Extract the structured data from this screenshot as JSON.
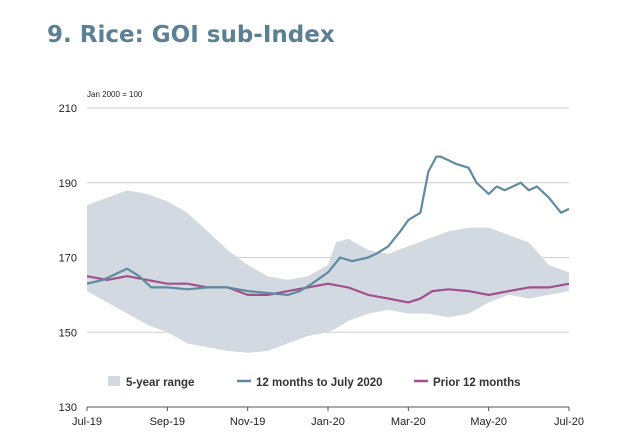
{
  "title": "9. Rice: GOI sub-Index",
  "chart_data": {
    "type": "line",
    "unit_note": "Jan 2000 = 100",
    "xlabel": "",
    "ylabel": "",
    "ylim": [
      130,
      210
    ],
    "yticks": [
      130,
      150,
      170,
      190,
      210
    ],
    "xlim": [
      0,
      12
    ],
    "xticks": [
      {
        "x": 0,
        "label": "Jul-19"
      },
      {
        "x": 2,
        "label": "Sep-19"
      },
      {
        "x": 4,
        "label": "Nov-19"
      },
      {
        "x": 6,
        "label": "Jan-20"
      },
      {
        "x": 8,
        "label": "Mar-20"
      },
      {
        "x": 10,
        "label": "May-20"
      },
      {
        "x": 12,
        "label": "Jul-20"
      }
    ],
    "grid": true,
    "legend_position": "bottom",
    "band": {
      "name": "5-year range",
      "color": "#d3d9e1",
      "x": [
        0,
        0.5,
        1,
        1.5,
        2,
        2.5,
        3,
        3.5,
        4,
        4.5,
        5,
        5.5,
        6,
        6.2,
        6.5,
        7,
        7.5,
        8,
        8.5,
        9,
        9.5,
        10,
        10.5,
        11,
        11.5,
        12
      ],
      "upper": [
        184,
        186,
        188,
        187,
        185,
        182,
        177,
        172,
        168,
        165,
        164,
        165,
        168,
        174,
        175,
        172,
        171,
        173,
        175,
        177,
        178,
        178,
        176,
        174,
        168,
        166
      ],
      "lower": [
        161,
        158,
        155,
        152,
        150,
        147,
        146,
        145,
        144.5,
        145,
        147,
        149,
        150,
        151,
        153,
        155,
        156,
        155,
        155,
        154,
        155,
        158,
        160,
        159,
        160,
        161
      ]
    },
    "series": [
      {
        "name": "12 months to July 2020",
        "color": "#5f8ba0",
        "x": [
          0,
          0.4,
          0.8,
          1.0,
          1.3,
          1.6,
          2.0,
          2.5,
          3.0,
          3.5,
          4.0,
          4.5,
          5.0,
          5.3,
          5.6,
          6.0,
          6.3,
          6.6,
          7.0,
          7.2,
          7.5,
          7.8,
          8.0,
          8.3,
          8.5,
          8.7,
          8.8,
          9.0,
          9.2,
          9.5,
          9.7,
          10.0,
          10.2,
          10.4,
          10.6,
          10.8,
          11.0,
          11.2,
          11.5,
          11.8,
          12.0
        ],
        "y": [
          163,
          164,
          166,
          167,
          165,
          162,
          162,
          161.5,
          162,
          162,
          161,
          160.5,
          160,
          161,
          163,
          166,
          170,
          169,
          170,
          171,
          173,
          177,
          180,
          182,
          193,
          197,
          197,
          196,
          195,
          194,
          190,
          187,
          189,
          188,
          189,
          190,
          188,
          189,
          186,
          182,
          183
        ]
      },
      {
        "name": "Prior 12 months",
        "color": "#a0508c",
        "x": [
          0,
          0.5,
          1.0,
          1.5,
          2.0,
          2.5,
          3.0,
          3.5,
          4.0,
          4.5,
          5.0,
          5.5,
          6.0,
          6.5,
          7.0,
          7.5,
          8.0,
          8.3,
          8.6,
          9.0,
          9.5,
          10.0,
          10.5,
          11.0,
          11.5,
          12.0
        ],
        "y": [
          165,
          164,
          165,
          164,
          163,
          163,
          162,
          162,
          160,
          160,
          161,
          162,
          163,
          162,
          160,
          159,
          158,
          159,
          161,
          161.5,
          161,
          160,
          161,
          162,
          162,
          163
        ]
      }
    ]
  }
}
